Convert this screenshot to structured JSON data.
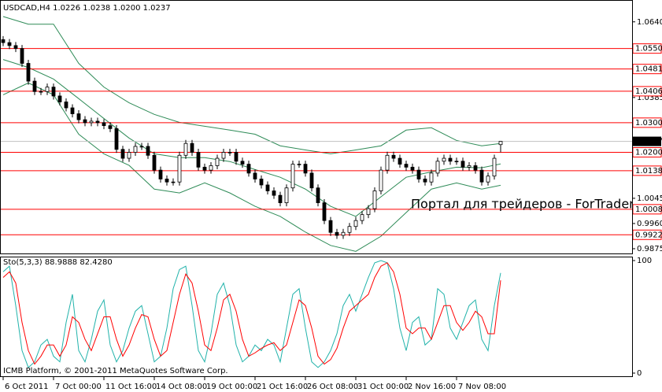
{
  "chart_data": [
    {
      "type": "candlestick",
      "title": "USDCAD,H4  1.0226 1.0238 1.0200 1.0237",
      "categories": [
        "6 Oct 2011",
        null,
        null,
        null,
        null,
        null,
        null,
        null,
        "7 Oct 00:00",
        null,
        null,
        null,
        null,
        null,
        null,
        null,
        "11 Oct 16:00",
        null,
        null,
        null,
        null,
        null,
        null,
        null,
        "14 Oct 08:00",
        null,
        null,
        null,
        null,
        null,
        null,
        null,
        "19 Oct 00:00",
        null,
        null,
        null,
        null,
        null,
        null,
        null,
        "21 Oct 16:00",
        null,
        null,
        null,
        null,
        null,
        null,
        null,
        "26 Oct 08:00",
        null,
        null,
        null,
        null,
        null,
        null,
        null,
        "31 Oct 00:00",
        null,
        null,
        null,
        null,
        null,
        null,
        null,
        "2 Nov 16:00",
        null,
        null,
        null,
        null,
        null,
        null,
        null,
        "7 Nov 08:00",
        null,
        null,
        null,
        null,
        null,
        null,
        null
      ],
      "open": [
        1.058,
        1.057,
        1.056,
        1.055,
        1.05,
        1.044,
        1.0405,
        1.0405,
        1.042,
        1.039,
        1.037,
        1.035,
        1.033,
        1.031,
        1.03,
        1.0305,
        1.03,
        1.029,
        1.028,
        1.021,
        1.018,
        1.02,
        1.022,
        1.022,
        1.019,
        1.014,
        1.011,
        1.01,
        1.01,
        1.019,
        1.023,
        1.02,
        1.015,
        1.014,
        1.0155,
        1.018,
        1.02,
        1.02,
        1.017,
        1.016,
        1.013,
        1.011,
        1.009,
        1.007,
        1.0055,
        1.003,
        1.008,
        1.016,
        1.016,
        1.013,
        1.008,
        1.003,
        0.997,
        0.993,
        0.992,
        0.993,
        0.995,
        0.997,
        0.999,
        1.001,
        1.007,
        1.014,
        1.019,
        1.018,
        1.016,
        1.015,
        1.014,
        1.011,
        1.01,
        1.013,
        1.017,
        1.018,
        1.017,
        1.017,
        1.015,
        1.0155,
        1.014,
        1.01,
        1.012,
        1.0226
      ],
      "high": [
        1.0592,
        1.0582,
        1.0572,
        1.0562,
        1.0512,
        1.0452,
        1.0417,
        1.0432,
        1.0432,
        1.0402,
        1.0382,
        1.0362,
        1.0342,
        1.0322,
        1.0317,
        1.0317,
        1.0312,
        1.0302,
        1.0292,
        1.0222,
        1.0212,
        1.0232,
        1.0232,
        1.0232,
        1.0202,
        1.0152,
        1.0122,
        1.0112,
        1.0202,
        1.0242,
        1.0242,
        1.0212,
        1.0162,
        1.0167,
        1.0192,
        1.0212,
        1.0212,
        1.0212,
        1.0182,
        1.0172,
        1.0142,
        1.0122,
        1.0102,
        1.0082,
        1.0067,
        1.0092,
        1.0172,
        1.0172,
        1.0172,
        1.0142,
        1.0092,
        1.0042,
        0.9982,
        0.9942,
        0.9942,
        0.9962,
        0.9982,
        1.0002,
        1.0022,
        1.0082,
        1.0152,
        1.0202,
        1.0202,
        1.0192,
        1.0172,
        1.0162,
        1.0152,
        1.0122,
        1.0142,
        1.0182,
        1.0192,
        1.0192,
        1.0182,
        1.0182,
        1.0167,
        1.0167,
        1.0152,
        1.0132,
        1.0192,
        1.0238
      ],
      "low": [
        1.0558,
        1.0548,
        1.0538,
        1.0488,
        1.0428,
        1.0393,
        1.0393,
        1.0393,
        1.0378,
        1.0358,
        1.0338,
        1.0318,
        1.0298,
        1.0288,
        1.0288,
        1.0288,
        1.0278,
        1.0268,
        1.0198,
        1.0168,
        1.0168,
        1.0188,
        1.0208,
        1.0178,
        1.0128,
        1.0098,
        1.0088,
        1.0088,
        1.0088,
        1.0178,
        1.0188,
        1.0138,
        1.0128,
        1.0128,
        1.0143,
        1.0168,
        1.0188,
        1.0158,
        1.0148,
        1.0118,
        1.0098,
        1.0078,
        1.0058,
        1.0043,
        1.0018,
        1.0018,
        1.0068,
        1.0148,
        1.0118,
        1.0068,
        1.0018,
        0.9958,
        0.9918,
        0.9908,
        0.9908,
        0.9918,
        0.9938,
        0.9958,
        0.9978,
        0.9998,
        1.0058,
        1.0128,
        1.0168,
        1.0148,
        1.0138,
        1.0128,
        1.0098,
        1.0088,
        1.0088,
        1.0118,
        1.0158,
        1.0158,
        1.0158,
        1.0138,
        1.0138,
        1.0128,
        1.0088,
        1.0088,
        1.0108,
        1.02
      ],
      "close": [
        1.057,
        1.056,
        1.055,
        1.05,
        1.044,
        1.0405,
        1.0405,
        1.042,
        1.039,
        1.037,
        1.035,
        1.033,
        1.031,
        1.03,
        1.0305,
        1.03,
        1.029,
        1.028,
        1.021,
        1.018,
        1.02,
        1.022,
        1.022,
        1.019,
        1.014,
        1.011,
        1.01,
        1.01,
        1.019,
        1.023,
        1.02,
        1.015,
        1.014,
        1.0155,
        1.018,
        1.02,
        1.02,
        1.017,
        1.016,
        1.013,
        1.011,
        1.009,
        1.007,
        1.0055,
        1.003,
        1.008,
        1.016,
        1.016,
        1.013,
        1.008,
        1.003,
        0.997,
        0.993,
        0.992,
        0.993,
        0.995,
        0.997,
        0.999,
        1.001,
        1.007,
        1.014,
        1.019,
        1.018,
        1.016,
        1.015,
        1.014,
        1.011,
        1.01,
        1.013,
        1.017,
        1.018,
        1.017,
        1.017,
        1.015,
        1.0155,
        1.014,
        1.01,
        1.012,
        1.018,
        1.0237
      ],
      "up_color": "#ffffff",
      "down_color": "#000000",
      "bands": {
        "color": "#2e8b57",
        "x": [
          0,
          4,
          8,
          12,
          16,
          20,
          24,
          28,
          32,
          36,
          40,
          44,
          48,
          52,
          56,
          60,
          64,
          68,
          72,
          76,
          79
        ],
        "series": [
          {
            "values": [
              1.0658,
              1.0632,
              1.0632,
              1.05,
              1.042,
              1.0367,
              1.0328,
              1.0301,
              1.0288,
              1.0275,
              1.0261,
              1.0222,
              1.0208,
              1.0195,
              1.0208,
              1.0222,
              1.0275,
              1.0283,
              1.024,
              1.0222,
              1.023
            ]
          },
          {
            "values": [
              1.0513,
              1.0486,
              1.0447,
              1.0381,
              1.0314,
              1.0248,
              1.0195,
              1.0182,
              1.0182,
              1.0169,
              1.0142,
              1.0116,
              1.0076,
              1.0018,
              0.9984,
              1.005,
              1.0116,
              1.0134,
              1.015,
              1.0148,
              1.0161
            ]
          },
          {
            "values": [
              1.0394,
              1.0434,
              1.0394,
              1.0261,
              1.0195,
              1.0156,
              1.0076,
              1.0063,
              1.0097,
              1.0063,
              1.0018,
              0.9984,
              0.9931,
              0.9886,
              0.9866,
              0.9917,
              0.9997,
              1.0076,
              1.0097,
              1.0076,
              1.0089
            ]
          }
        ]
      },
      "levels": [
        {
          "value": 1.055,
          "label": "1.0550"
        },
        {
          "value": 1.0481,
          "label": "1.0481"
        },
        {
          "value": 1.0406,
          "label": "1.0406"
        },
        {
          "value": 1.03,
          "label": "1.0300"
        },
        {
          "value": 1.02,
          "label": "1.0200"
        },
        {
          "value": 1.0138,
          "label": "1.0138"
        },
        {
          "value": 1.0008,
          "label": "1.0008"
        },
        {
          "value": 0.9922,
          "label": "0.9922"
        }
      ],
      "level_color": "#ff0000",
      "bid": {
        "value": 1.0237,
        "label": "1.0237"
      },
      "ylim": [
        0.9859,
        1.0711
      ],
      "yticks": [
        {
          "value": 1.064,
          "label": "1.0640"
        },
        {
          "value": 1.0385,
          "label": "1.0385"
        },
        {
          "value": 1.0045,
          "label": "1.0045"
        },
        {
          "value": 0.996,
          "label": "0.9960"
        },
        {
          "value": 0.9875,
          "label": "0.9875"
        }
      ],
      "watermark": "Портал для трейдеров - ForTrader"
    },
    {
      "type": "line",
      "title": "Sto(5,3,3) 88.9888 82.4280",
      "series": [
        {
          "color": "#20b2aa",
          "values": [
            90,
            95,
            60,
            20,
            5,
            10,
            25,
            30,
            15,
            10,
            45,
            70,
            20,
            10,
            30,
            55,
            65,
            25,
            10,
            20,
            40,
            55,
            60,
            35,
            10,
            15,
            40,
            75,
            92,
            95,
            60,
            20,
            10,
            35,
            70,
            80,
            60,
            25,
            10,
            15,
            25,
            20,
            30,
            25,
            10,
            40,
            70,
            75,
            40,
            10,
            5,
            10,
            20,
            35,
            60,
            70,
            55,
            70,
            85,
            98,
            100,
            98,
            75,
            40,
            20,
            45,
            50,
            25,
            30,
            75,
            70,
            40,
            30,
            45,
            60,
            65,
            30,
            20,
            60,
            88.9888
          ]
        },
        {
          "color": "#ff0000",
          "values": [
            85,
            90,
            80,
            45,
            20,
            8,
            15,
            25,
            25,
            15,
            25,
            50,
            45,
            30,
            20,
            35,
            50,
            50,
            30,
            15,
            25,
            40,
            52,
            50,
            30,
            15,
            20,
            45,
            70,
            88,
            80,
            55,
            25,
            20,
            40,
            65,
            70,
            55,
            30,
            15,
            18,
            22,
            25,
            27,
            20,
            25,
            45,
            65,
            60,
            40,
            15,
            8,
            12,
            22,
            40,
            55,
            60,
            65,
            70,
            85,
            95,
            98,
            90,
            70,
            40,
            35,
            40,
            40,
            30,
            45,
            60,
            60,
            45,
            38,
            45,
            55,
            50,
            35,
            35,
            82.428
          ]
        }
      ],
      "ylim": [
        0,
        100
      ],
      "yticks": [
        0,
        100
      ],
      "footer": "ICMB Platform, © 2001-2011 MetaQuotes Software Corp."
    }
  ]
}
